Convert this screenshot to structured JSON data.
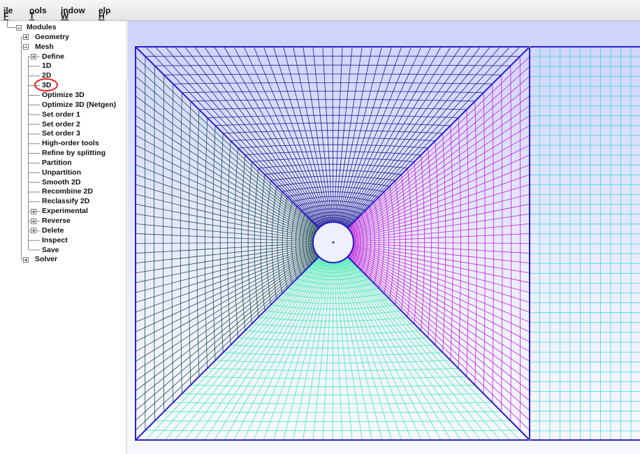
{
  "menubar": {
    "items": [
      {
        "label": "File"
      },
      {
        "label": "Tools"
      },
      {
        "label": "Window"
      },
      {
        "label": "Help"
      }
    ]
  },
  "tree": {
    "nodes": [
      {
        "label": "Modules",
        "level": 0,
        "expander": "minus"
      },
      {
        "label": "Geometry",
        "level": 1,
        "expander": "plus"
      },
      {
        "label": "Mesh",
        "level": 1,
        "expander": "minus"
      },
      {
        "label": "Define",
        "level": 2,
        "expander": "plus"
      },
      {
        "label": "1D",
        "level": 2,
        "expander": "none"
      },
      {
        "label": "2D",
        "level": 2,
        "expander": "none"
      },
      {
        "label": "3D",
        "level": 2,
        "expander": "none",
        "highlighted": true
      },
      {
        "label": "Optimize 3D",
        "level": 2,
        "expander": "none"
      },
      {
        "label": "Optimize 3D (Netgen)",
        "level": 2,
        "expander": "none"
      },
      {
        "label": "Set order 1",
        "level": 2,
        "expander": "none"
      },
      {
        "label": "Set order 2",
        "level": 2,
        "expander": "none"
      },
      {
        "label": "Set order 3",
        "level": 2,
        "expander": "none"
      },
      {
        "label": "High-order tools",
        "level": 2,
        "expander": "none"
      },
      {
        "label": "Refine by splitting",
        "level": 2,
        "expander": "none"
      },
      {
        "label": "Partition",
        "level": 2,
        "expander": "none"
      },
      {
        "label": "Unpartition",
        "level": 2,
        "expander": "none"
      },
      {
        "label": "Smooth 2D",
        "level": 2,
        "expander": "none"
      },
      {
        "label": "Recombine 2D",
        "level": 2,
        "expander": "none"
      },
      {
        "label": "Reclassify 2D",
        "level": 2,
        "expander": "none"
      },
      {
        "label": "Experimental",
        "level": 2,
        "expander": "plus"
      },
      {
        "label": "Reverse",
        "level": 2,
        "expander": "plus"
      },
      {
        "label": "Delete",
        "level": 2,
        "expander": "plus"
      },
      {
        "label": "Inspect",
        "level": 2,
        "expander": "none"
      },
      {
        "label": "Save",
        "level": 2,
        "expander": "none"
      },
      {
        "label": "Solver",
        "level": 1,
        "expander": "plus"
      }
    ]
  },
  "graphics": {
    "mesh_colors": {
      "top": "#1b1b8c",
      "left": "#1f4f4a",
      "right": "#c21fd6",
      "bottom": "#3cf0a6",
      "adjacent": "#3fd7de",
      "boundary": "#2a1fd0"
    },
    "background_top": "#cdd3fb",
    "background_bottom": "#f7f8ff"
  }
}
